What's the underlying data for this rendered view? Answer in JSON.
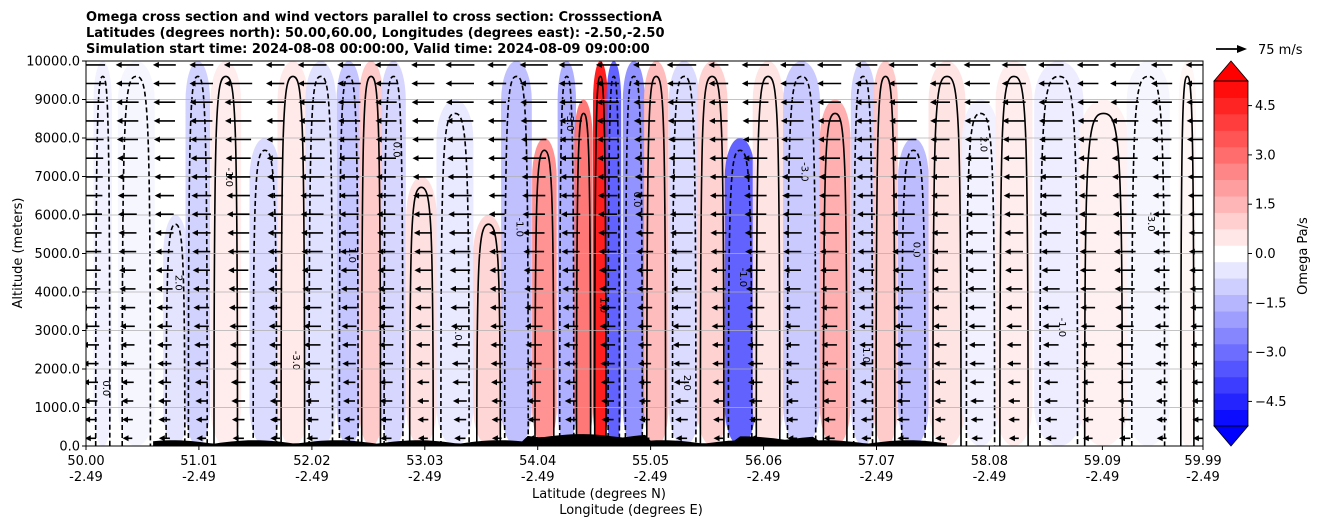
{
  "chart_data": {
    "type": "heatmap",
    "title": [
      "Omega cross section and wind vectors parallel to cross section: CrosssectionA",
      "Latitudes (degrees north): 50.00,60.00, Longitudes (degrees east): -2.50,-2.50",
      "Simulation start time: 2024-08-08 00:00:00, Valid time: 2024-08-09 09:00:00"
    ],
    "xlabel": [
      "Latitude (degrees N)",
      "Longitude (degrees E)"
    ],
    "ylabel": "Altitude (meters)",
    "xlim": [
      50.0,
      59.99
    ],
    "ylim": [
      0,
      10000
    ],
    "x_ticks": [
      {
        "lat": "50.00",
        "lon": "-2.49"
      },
      {
        "lat": "51.01",
        "lon": "-2.49"
      },
      {
        "lat": "52.02",
        "lon": "-2.49"
      },
      {
        "lat": "53.03",
        "lon": "-2.49"
      },
      {
        "lat": "54.04",
        "lon": "-2.49"
      },
      {
        "lat": "55.05",
        "lon": "-2.49"
      },
      {
        "lat": "56.06",
        "lon": "-2.49"
      },
      {
        "lat": "57.07",
        "lon": "-2.49"
      },
      {
        "lat": "58.08",
        "lon": "-2.49"
      },
      {
        "lat": "59.09",
        "lon": "-2.49"
      },
      {
        "lat": "59.99",
        "lon": "-2.49"
      }
    ],
    "y_ticks": [
      "0.0",
      "1000.0",
      "2000.0",
      "3000.0",
      "4000.0",
      "5000.0",
      "6000.0",
      "7000.0",
      "8000.0",
      "9000.0",
      "10000.0"
    ],
    "grid": "horizontal",
    "colorbar": {
      "label": "Omega Pa/s",
      "range": [
        -5.25,
        5.25
      ],
      "ticks": [
        "4.5",
        "3.0",
        "1.5",
        "0.0",
        "−1.5",
        "−3.0",
        "−4.5"
      ],
      "colormap": "bwr",
      "extend": "both"
    },
    "quiver_key": {
      "label": "75 m/s"
    },
    "contour_label_values": [
      "0.0",
      "1.0",
      "2.0",
      "3.0",
      "-1.0",
      "-2.0",
      "-3.0",
      "2.0",
      "1.0",
      "0.0"
    ],
    "bands": [
      {
        "lat": 50.15,
        "top": 10000,
        "value": -0.3
      },
      {
        "lat": 50.45,
        "top": 10000,
        "value": -0.2
      },
      {
        "lat": 50.8,
        "top": 6000,
        "value": -0.6
      },
      {
        "lat": 51.0,
        "top": 10000,
        "value": -1.0
      },
      {
        "lat": 51.25,
        "top": 10000,
        "value": 0.4
      },
      {
        "lat": 51.6,
        "top": 8000,
        "value": -0.8
      },
      {
        "lat": 51.85,
        "top": 10000,
        "value": 0.5
      },
      {
        "lat": 52.1,
        "top": 10000,
        "value": -0.7
      },
      {
        "lat": 52.35,
        "top": 10000,
        "value": -1.3
      },
      {
        "lat": 52.55,
        "top": 10000,
        "value": 1.2
      },
      {
        "lat": 52.75,
        "top": 10000,
        "value": -0.9
      },
      {
        "lat": 53.0,
        "top": 7000,
        "value": 0.7
      },
      {
        "lat": 53.3,
        "top": 9000,
        "value": -0.5
      },
      {
        "lat": 53.6,
        "top": 6000,
        "value": 0.9
      },
      {
        "lat": 53.85,
        "top": 10000,
        "value": -1.4
      },
      {
        "lat": 54.1,
        "top": 8000,
        "value": 2.4
      },
      {
        "lat": 54.3,
        "top": 10000,
        "value": -1.8
      },
      {
        "lat": 54.45,
        "top": 9000,
        "value": 3.0
      },
      {
        "lat": 54.6,
        "top": 10000,
        "value": 5.0
      },
      {
        "lat": 54.72,
        "top": 10000,
        "value": -3.5
      },
      {
        "lat": 54.9,
        "top": 10000,
        "value": -2.4
      },
      {
        "lat": 55.1,
        "top": 10000,
        "value": 1.5
      },
      {
        "lat": 55.35,
        "top": 10000,
        "value": -0.8
      },
      {
        "lat": 55.6,
        "top": 10000,
        "value": 1.0
      },
      {
        "lat": 55.85,
        "top": 8000,
        "value": -3.5
      },
      {
        "lat": 56.1,
        "top": 10000,
        "value": 0.6
      },
      {
        "lat": 56.4,
        "top": 10000,
        "value": -1.2
      },
      {
        "lat": 56.7,
        "top": 9000,
        "value": 1.8
      },
      {
        "lat": 56.95,
        "top": 10000,
        "value": -1.0
      },
      {
        "lat": 57.15,
        "top": 10000,
        "value": 1.2
      },
      {
        "lat": 57.4,
        "top": 8000,
        "value": -1.5
      },
      {
        "lat": 57.7,
        "top": 10000,
        "value": 0.6
      },
      {
        "lat": 58.0,
        "top": 9000,
        "value": -0.3
      },
      {
        "lat": 58.3,
        "top": 10000,
        "value": 0.4
      },
      {
        "lat": 58.7,
        "top": 10000,
        "value": -0.4
      },
      {
        "lat": 59.1,
        "top": 9000,
        "value": 0.3
      },
      {
        "lat": 59.5,
        "top": 10000,
        "value": -0.2
      },
      {
        "lat": 59.85,
        "top": 10000,
        "value": 0.2
      }
    ]
  }
}
